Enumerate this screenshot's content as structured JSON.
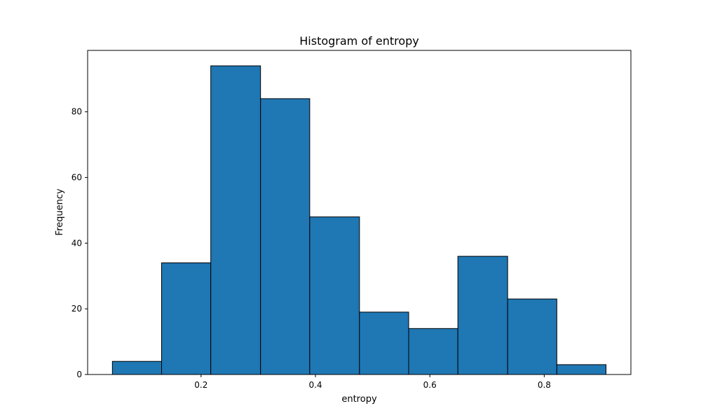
{
  "chart_data": {
    "type": "bar",
    "title": "Histogram of entropy",
    "xlabel": "entropy",
    "ylabel": "Frequency",
    "bins": [
      {
        "x0": 0.045,
        "x1": 0.131,
        "count": 4
      },
      {
        "x0": 0.131,
        "x1": 0.217,
        "count": 34
      },
      {
        "x0": 0.217,
        "x1": 0.304,
        "count": 94
      },
      {
        "x0": 0.304,
        "x1": 0.39,
        "count": 84
      },
      {
        "x0": 0.39,
        "x1": 0.477,
        "count": 48
      },
      {
        "x0": 0.477,
        "x1": 0.563,
        "count": 19
      },
      {
        "x0": 0.563,
        "x1": 0.649,
        "count": 14
      },
      {
        "x0": 0.649,
        "x1": 0.736,
        "count": 36
      },
      {
        "x0": 0.736,
        "x1": 0.822,
        "count": 23
      },
      {
        "x0": 0.822,
        "x1": 0.908,
        "count": 3
      }
    ],
    "xlim": [
      0.0017,
      0.9515
    ],
    "ylim": [
      0,
      98.7
    ],
    "x_ticks": [
      0.2,
      0.4,
      0.6,
      0.8
    ],
    "x_tick_labels": [
      "0.2",
      "0.4",
      "0.6",
      "0.8"
    ],
    "y_ticks": [
      0,
      20,
      40,
      60,
      80
    ],
    "y_tick_labels": [
      "0",
      "20",
      "40",
      "60",
      "80"
    ],
    "grid": false,
    "colors": {
      "bar_fill": "#1f77b4",
      "bar_edge": "#000000",
      "axes": "#000000"
    }
  }
}
